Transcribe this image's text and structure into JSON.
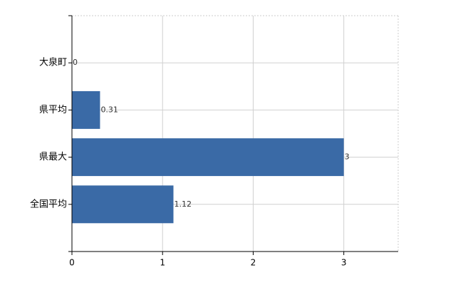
{
  "chart_data": {
    "type": "bar",
    "orientation": "horizontal",
    "categories": [
      "大泉町",
      "県平均",
      "県最大",
      "全国平均"
    ],
    "values": [
      0,
      0.31,
      3,
      1.12
    ],
    "color": "#3a6aa6",
    "xlim": [
      0,
      3.6
    ],
    "xticks": [
      0,
      1,
      2,
      3
    ],
    "grid": true
  }
}
